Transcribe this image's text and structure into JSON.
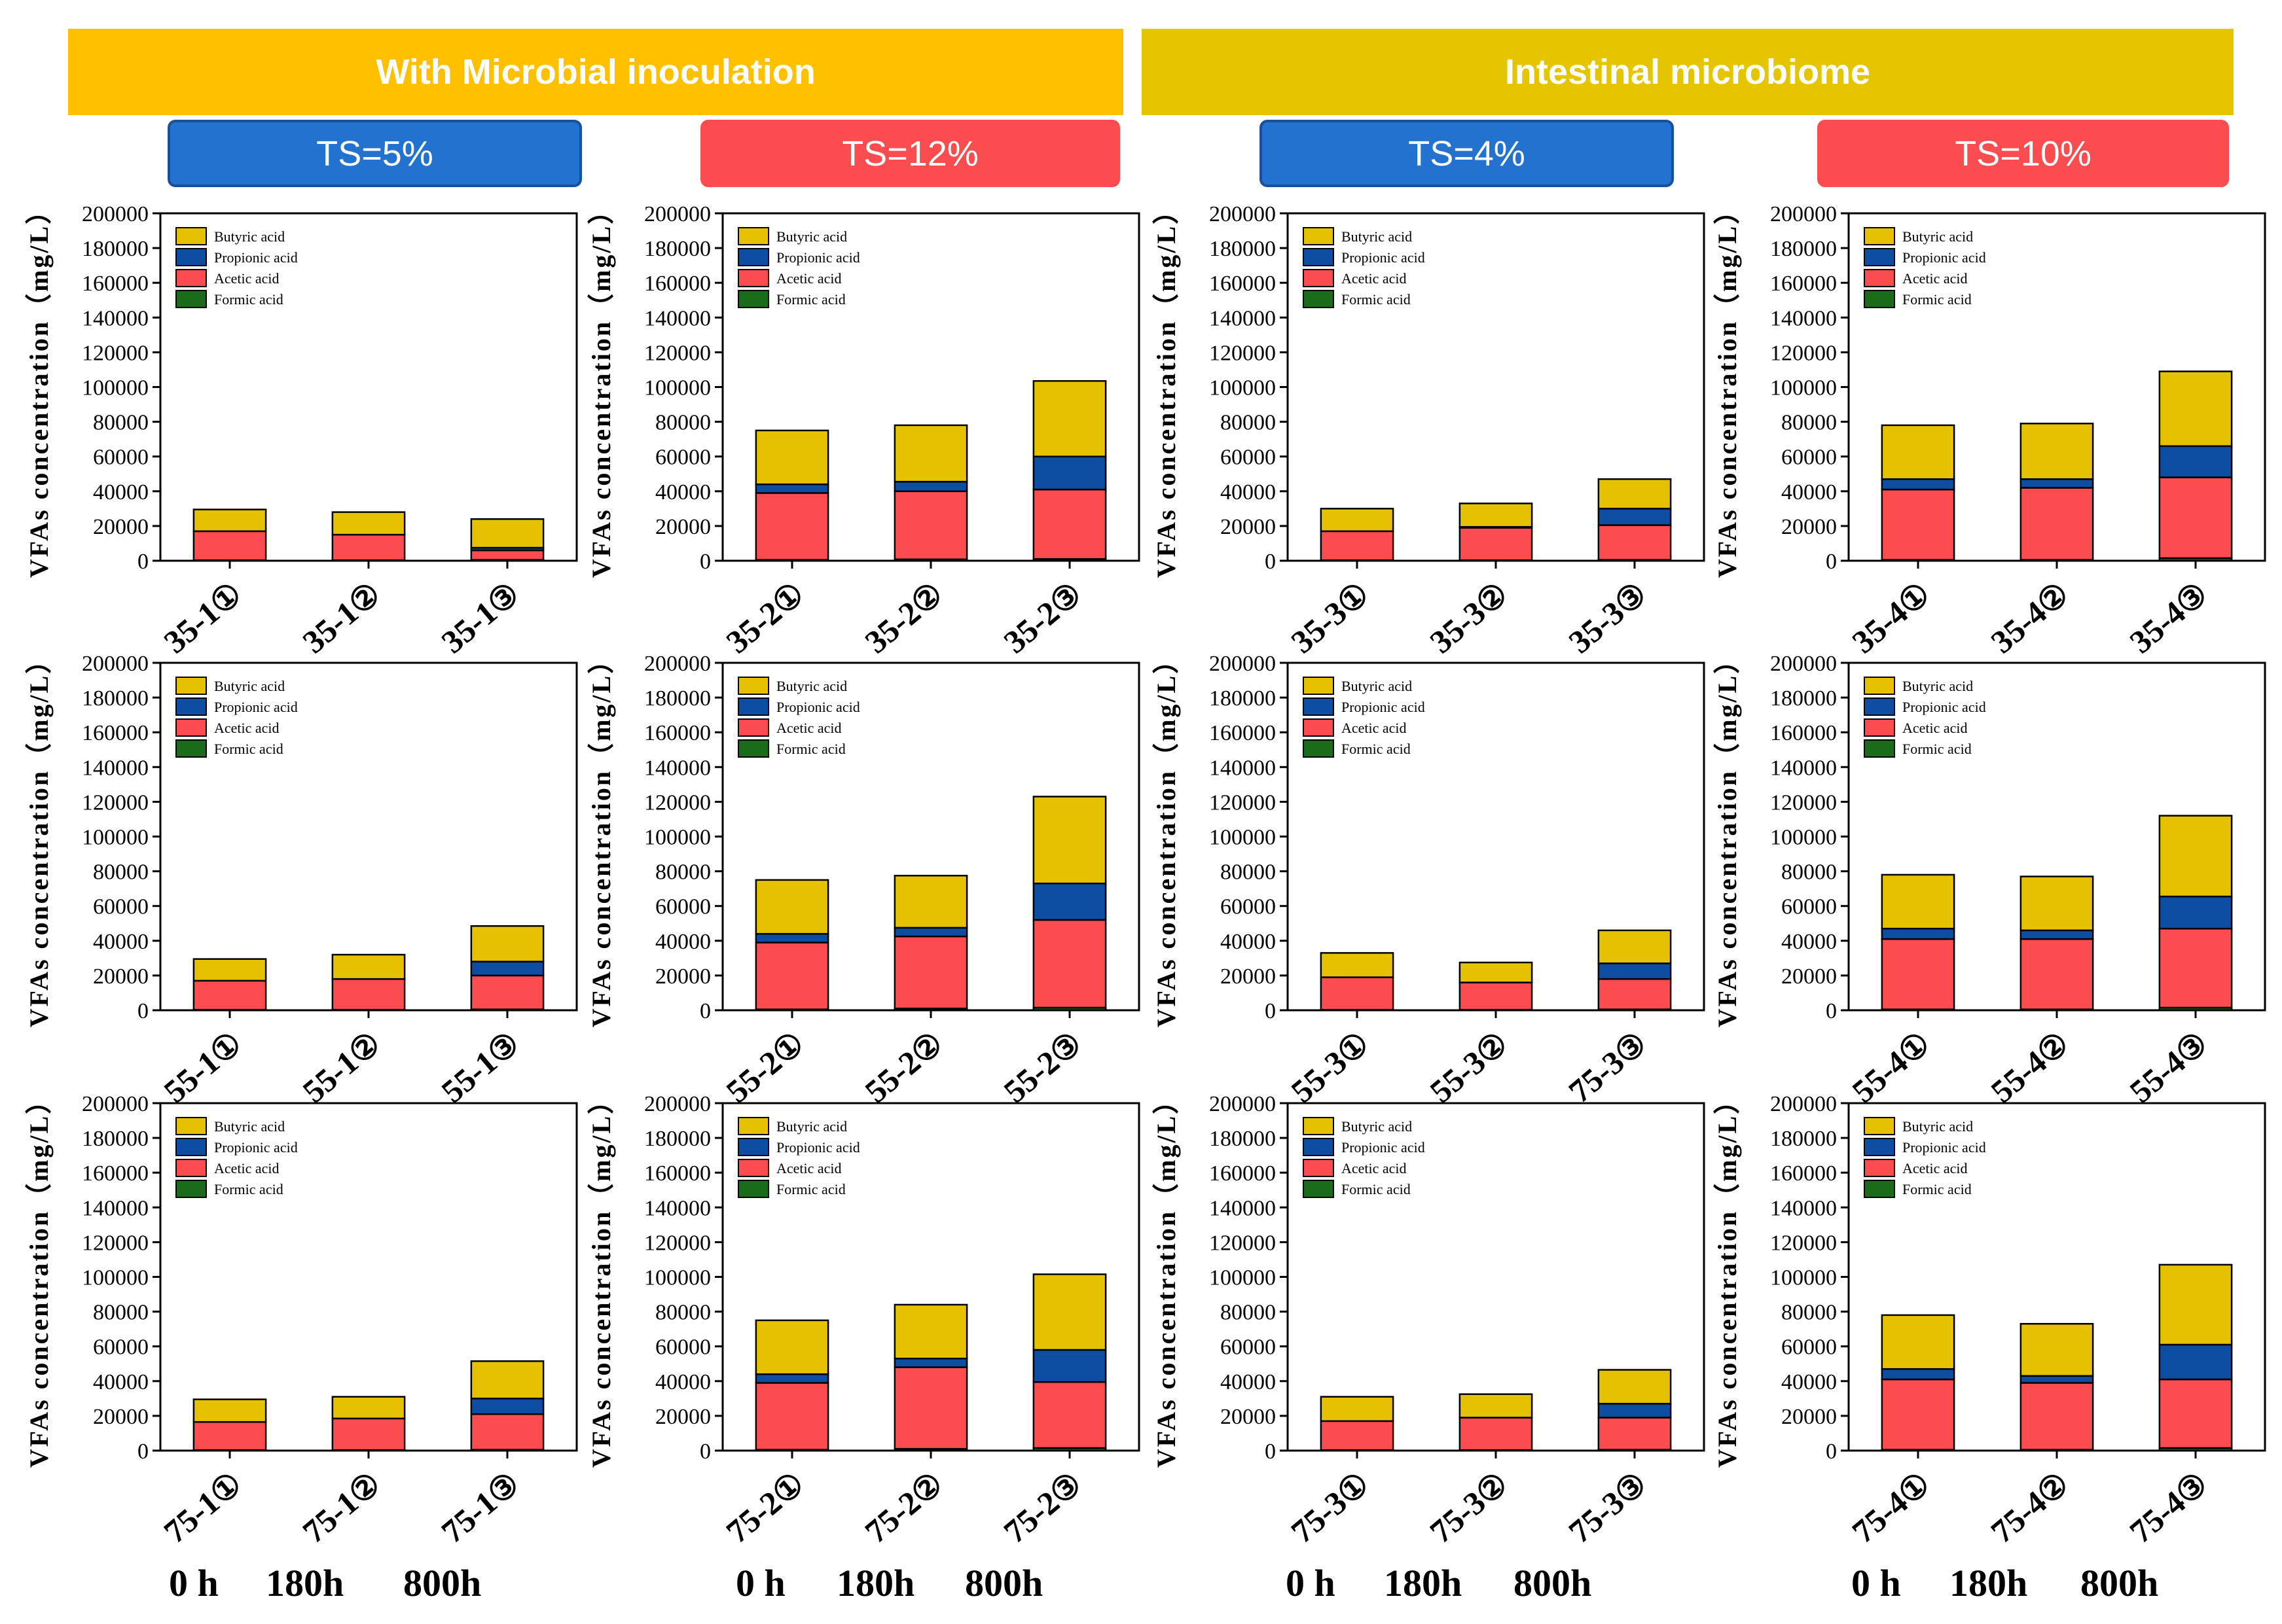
{
  "header": {
    "group_left": "With Microbial inoculation",
    "group_right": "Intestinal microbiome",
    "ts_labels": [
      "TS=5%",
      "TS=12%",
      "TS=4%",
      "TS=10%"
    ]
  },
  "colors": {
    "group_left_bg": "#ffc000",
    "group_right_bg": "#e5c400",
    "butyric": "#e5c100",
    "propionic": "#0e4ea2",
    "acetic": "#fb4d4f",
    "formic": "#1a6b1a"
  },
  "time_labels": [
    "0 h",
    "180h",
    "800h"
  ],
  "chart_data": [
    {
      "type": "bar",
      "stacked": true,
      "ylabel": "VFAs concentration（mg/L）",
      "ylim": [
        0,
        200000
      ],
      "yticks": [
        0,
        20000,
        40000,
        60000,
        80000,
        100000,
        120000,
        140000,
        160000,
        180000,
        200000
      ],
      "legend": [
        "Butyric acid",
        "Propionic acid",
        "Acetic acid",
        "Formic acid"
      ],
      "categories": [
        "35-1①",
        "35-1②",
        "35-1③"
      ],
      "series": [
        {
          "name": "Formic acid",
          "values": [
            300,
            300,
            500
          ]
        },
        {
          "name": "Acetic acid",
          "values": [
            16700,
            14700,
            5500
          ]
        },
        {
          "name": "Propionic acid",
          "values": [
            0,
            0,
            1500
          ]
        },
        {
          "name": "Butyric acid",
          "values": [
            12500,
            13000,
            16500
          ]
        }
      ]
    },
    {
      "type": "bar",
      "stacked": true,
      "ylabel": "VFAs concentration（mg/L）",
      "ylim": [
        0,
        200000
      ],
      "yticks": [
        0,
        20000,
        40000,
        60000,
        80000,
        100000,
        120000,
        140000,
        160000,
        180000,
        200000
      ],
      "legend": [
        "Butyric acid",
        "Propionic acid",
        "Acetic acid",
        "Formic acid"
      ],
      "categories": [
        "35-2①",
        "35-2②",
        "35-2③"
      ],
      "series": [
        {
          "name": "Formic acid",
          "values": [
            500,
            800,
            1000
          ]
        },
        {
          "name": "Acetic acid",
          "values": [
            38500,
            39200,
            40000
          ]
        },
        {
          "name": "Propionic acid",
          "values": [
            5000,
            5500,
            19000
          ]
        },
        {
          "name": "Butyric acid",
          "values": [
            31000,
            32500,
            43500
          ]
        }
      ]
    },
    {
      "type": "bar",
      "stacked": true,
      "ylabel": "VFAs concentration（mg/L）",
      "ylim": [
        0,
        200000
      ],
      "yticks": [
        0,
        20000,
        40000,
        60000,
        80000,
        100000,
        120000,
        140000,
        160000,
        180000,
        200000
      ],
      "legend": [
        "Butyric acid",
        "Propionic acid",
        "Acetic acid",
        "Formic acid"
      ],
      "categories": [
        "35-3①",
        "35-3②",
        "35-3③"
      ],
      "series": [
        {
          "name": "Formic acid",
          "values": [
            300,
            300,
            500
          ]
        },
        {
          "name": "Acetic acid",
          "values": [
            16700,
            18700,
            20000
          ]
        },
        {
          "name": "Propionic acid",
          "values": [
            0,
            500,
            9500
          ]
        },
        {
          "name": "Butyric acid",
          "values": [
            13000,
            13500,
            17000
          ]
        }
      ]
    },
    {
      "type": "bar",
      "stacked": true,
      "ylabel": "VFAs concentration（mg/L）",
      "ylim": [
        0,
        200000
      ],
      "yticks": [
        0,
        20000,
        40000,
        60000,
        80000,
        100000,
        120000,
        140000,
        160000,
        180000,
        200000
      ],
      "legend": [
        "Butyric acid",
        "Propionic acid",
        "Acetic acid",
        "Formic acid"
      ],
      "categories": [
        "35-4①",
        "35-4②",
        "35-4③"
      ],
      "series": [
        {
          "name": "Formic acid",
          "values": [
            500,
            500,
            1500
          ]
        },
        {
          "name": "Acetic acid",
          "values": [
            40500,
            41500,
            46500
          ]
        },
        {
          "name": "Propionic acid",
          "values": [
            6000,
            5000,
            18000
          ]
        },
        {
          "name": "Butyric acid",
          "values": [
            31000,
            32000,
            43000
          ]
        }
      ]
    },
    {
      "type": "bar",
      "stacked": true,
      "ylabel": "VFAs concentration（mg/L）",
      "ylim": [
        0,
        200000
      ],
      "yticks": [
        0,
        20000,
        40000,
        60000,
        80000,
        100000,
        120000,
        140000,
        160000,
        180000,
        200000
      ],
      "legend": [
        "Butyric acid",
        "Propionic acid",
        "Acetic acid",
        "Formic acid"
      ],
      "categories": [
        "55-1①",
        "55-1②",
        "55-1③"
      ],
      "series": [
        {
          "name": "Formic acid",
          "values": [
            300,
            300,
            500
          ]
        },
        {
          "name": "Acetic acid",
          "values": [
            16700,
            17700,
            19500
          ]
        },
        {
          "name": "Propionic acid",
          "values": [
            0,
            0,
            8000
          ]
        },
        {
          "name": "Butyric acid",
          "values": [
            12500,
            14000,
            20500
          ]
        }
      ]
    },
    {
      "type": "bar",
      "stacked": true,
      "ylabel": "VFAs concentration（mg/L）",
      "ylim": [
        0,
        200000
      ],
      "yticks": [
        0,
        20000,
        40000,
        60000,
        80000,
        100000,
        120000,
        140000,
        160000,
        180000,
        200000
      ],
      "legend": [
        "Butyric acid",
        "Propionic acid",
        "Acetic acid",
        "Formic acid"
      ],
      "categories": [
        "55-2①",
        "55-2②",
        "55-2③"
      ],
      "series": [
        {
          "name": "Formic acid",
          "values": [
            500,
            1000,
            1500
          ]
        },
        {
          "name": "Acetic acid",
          "values": [
            38500,
            41500,
            50500
          ]
        },
        {
          "name": "Propionic acid",
          "values": [
            5000,
            5000,
            21000
          ]
        },
        {
          "name": "Butyric acid",
          "values": [
            31000,
            30000,
            50000
          ]
        }
      ]
    },
    {
      "type": "bar",
      "stacked": true,
      "ylabel": "VFAs concentration（mg/L）",
      "ylim": [
        0,
        200000
      ],
      "yticks": [
        0,
        20000,
        40000,
        60000,
        80000,
        100000,
        120000,
        140000,
        160000,
        180000,
        200000
      ],
      "legend": [
        "Butyric acid",
        "Propionic acid",
        "Acetic acid",
        "Formic acid"
      ],
      "categories": [
        "55-3①",
        "55-3②",
        "75-3③"
      ],
      "series": [
        {
          "name": "Formic acid",
          "values": [
            300,
            300,
            500
          ]
        },
        {
          "name": "Acetic acid",
          "values": [
            18700,
            15700,
            17500
          ]
        },
        {
          "name": "Propionic acid",
          "values": [
            0,
            0,
            9000
          ]
        },
        {
          "name": "Butyric acid",
          "values": [
            14000,
            11500,
            19000
          ]
        }
      ]
    },
    {
      "type": "bar",
      "stacked": true,
      "ylabel": "VFAs concentration（mg/L）",
      "ylim": [
        0,
        200000
      ],
      "yticks": [
        0,
        20000,
        40000,
        60000,
        80000,
        100000,
        120000,
        140000,
        160000,
        180000,
        200000
      ],
      "legend": [
        "Butyric acid",
        "Propionic acid",
        "Acetic acid",
        "Formic acid"
      ],
      "categories": [
        "55-4①",
        "55-4②",
        "55-4③"
      ],
      "series": [
        {
          "name": "Formic acid",
          "values": [
            500,
            500,
            1500
          ]
        },
        {
          "name": "Acetic acid",
          "values": [
            40500,
            40500,
            45500
          ]
        },
        {
          "name": "Propionic acid",
          "values": [
            6000,
            5000,
            18500
          ]
        },
        {
          "name": "Butyric acid",
          "values": [
            31000,
            31000,
            46500
          ]
        }
      ]
    },
    {
      "type": "bar",
      "stacked": true,
      "ylabel": "VFAs concentration（mg/L）",
      "ylim": [
        0,
        200000
      ],
      "yticks": [
        0,
        20000,
        40000,
        60000,
        80000,
        100000,
        120000,
        140000,
        160000,
        180000,
        200000
      ],
      "legend": [
        "Butyric acid",
        "Propionic acid",
        "Acetic acid",
        "Formic acid"
      ],
      "categories": [
        "75-1①",
        "75-1②",
        "75-1③"
      ],
      "series": [
        {
          "name": "Formic acid",
          "values": [
            300,
            300,
            500
          ]
        },
        {
          "name": "Acetic acid",
          "values": [
            16200,
            18200,
            20500
          ]
        },
        {
          "name": "Propionic acid",
          "values": [
            0,
            0,
            9000
          ]
        },
        {
          "name": "Butyric acid",
          "values": [
            13000,
            12500,
            21500
          ]
        }
      ]
    },
    {
      "type": "bar",
      "stacked": true,
      "ylabel": "VFAs concentration（mg/L）",
      "ylim": [
        0,
        200000
      ],
      "yticks": [
        0,
        20000,
        40000,
        60000,
        80000,
        100000,
        120000,
        140000,
        160000,
        180000,
        200000
      ],
      "legend": [
        "Butyric acid",
        "Propionic acid",
        "Acetic acid",
        "Formic acid"
      ],
      "categories": [
        "75-2①",
        "75-2②",
        "75-2③"
      ],
      "series": [
        {
          "name": "Formic acid",
          "values": [
            500,
            1000,
            1500
          ]
        },
        {
          "name": "Acetic acid",
          "values": [
            38500,
            47000,
            38000
          ]
        },
        {
          "name": "Propionic acid",
          "values": [
            5000,
            5000,
            18500
          ]
        },
        {
          "name": "Butyric acid",
          "values": [
            31000,
            31000,
            43500
          ]
        }
      ]
    },
    {
      "type": "bar",
      "stacked": true,
      "ylabel": "VFAs concentration（mg/L）",
      "ylim": [
        0,
        200000
      ],
      "yticks": [
        0,
        20000,
        40000,
        60000,
        80000,
        100000,
        120000,
        140000,
        160000,
        180000,
        200000
      ],
      "legend": [
        "Butyric acid",
        "Propionic acid",
        "Acetic acid",
        "Formic acid"
      ],
      "categories": [
        "75-3①",
        "75-3②",
        "75-3③"
      ],
      "series": [
        {
          "name": "Formic acid",
          "values": [
            300,
            300,
            500
          ]
        },
        {
          "name": "Acetic acid",
          "values": [
            16700,
            18700,
            18500
          ]
        },
        {
          "name": "Propionic acid",
          "values": [
            0,
            0,
            8000
          ]
        },
        {
          "name": "Butyric acid",
          "values": [
            14000,
            13500,
            19500
          ]
        }
      ]
    },
    {
      "type": "bar",
      "stacked": true,
      "ylabel": "VFAs concentration（mg/L）",
      "ylim": [
        0,
        200000
      ],
      "yticks": [
        0,
        20000,
        40000,
        60000,
        80000,
        100000,
        120000,
        140000,
        160000,
        180000,
        200000
      ],
      "legend": [
        "Butyric acid",
        "Propionic acid",
        "Acetic acid",
        "Formic acid"
      ],
      "categories": [
        "75-4①",
        "75-4②",
        "75-4③"
      ],
      "series": [
        {
          "name": "Formic acid",
          "values": [
            500,
            500,
            1500
          ]
        },
        {
          "name": "Acetic acid",
          "values": [
            40500,
            38500,
            39500
          ]
        },
        {
          "name": "Propionic acid",
          "values": [
            6000,
            4000,
            20000
          ]
        },
        {
          "name": "Butyric acid",
          "values": [
            31000,
            30000,
            46000
          ]
        }
      ]
    }
  ]
}
